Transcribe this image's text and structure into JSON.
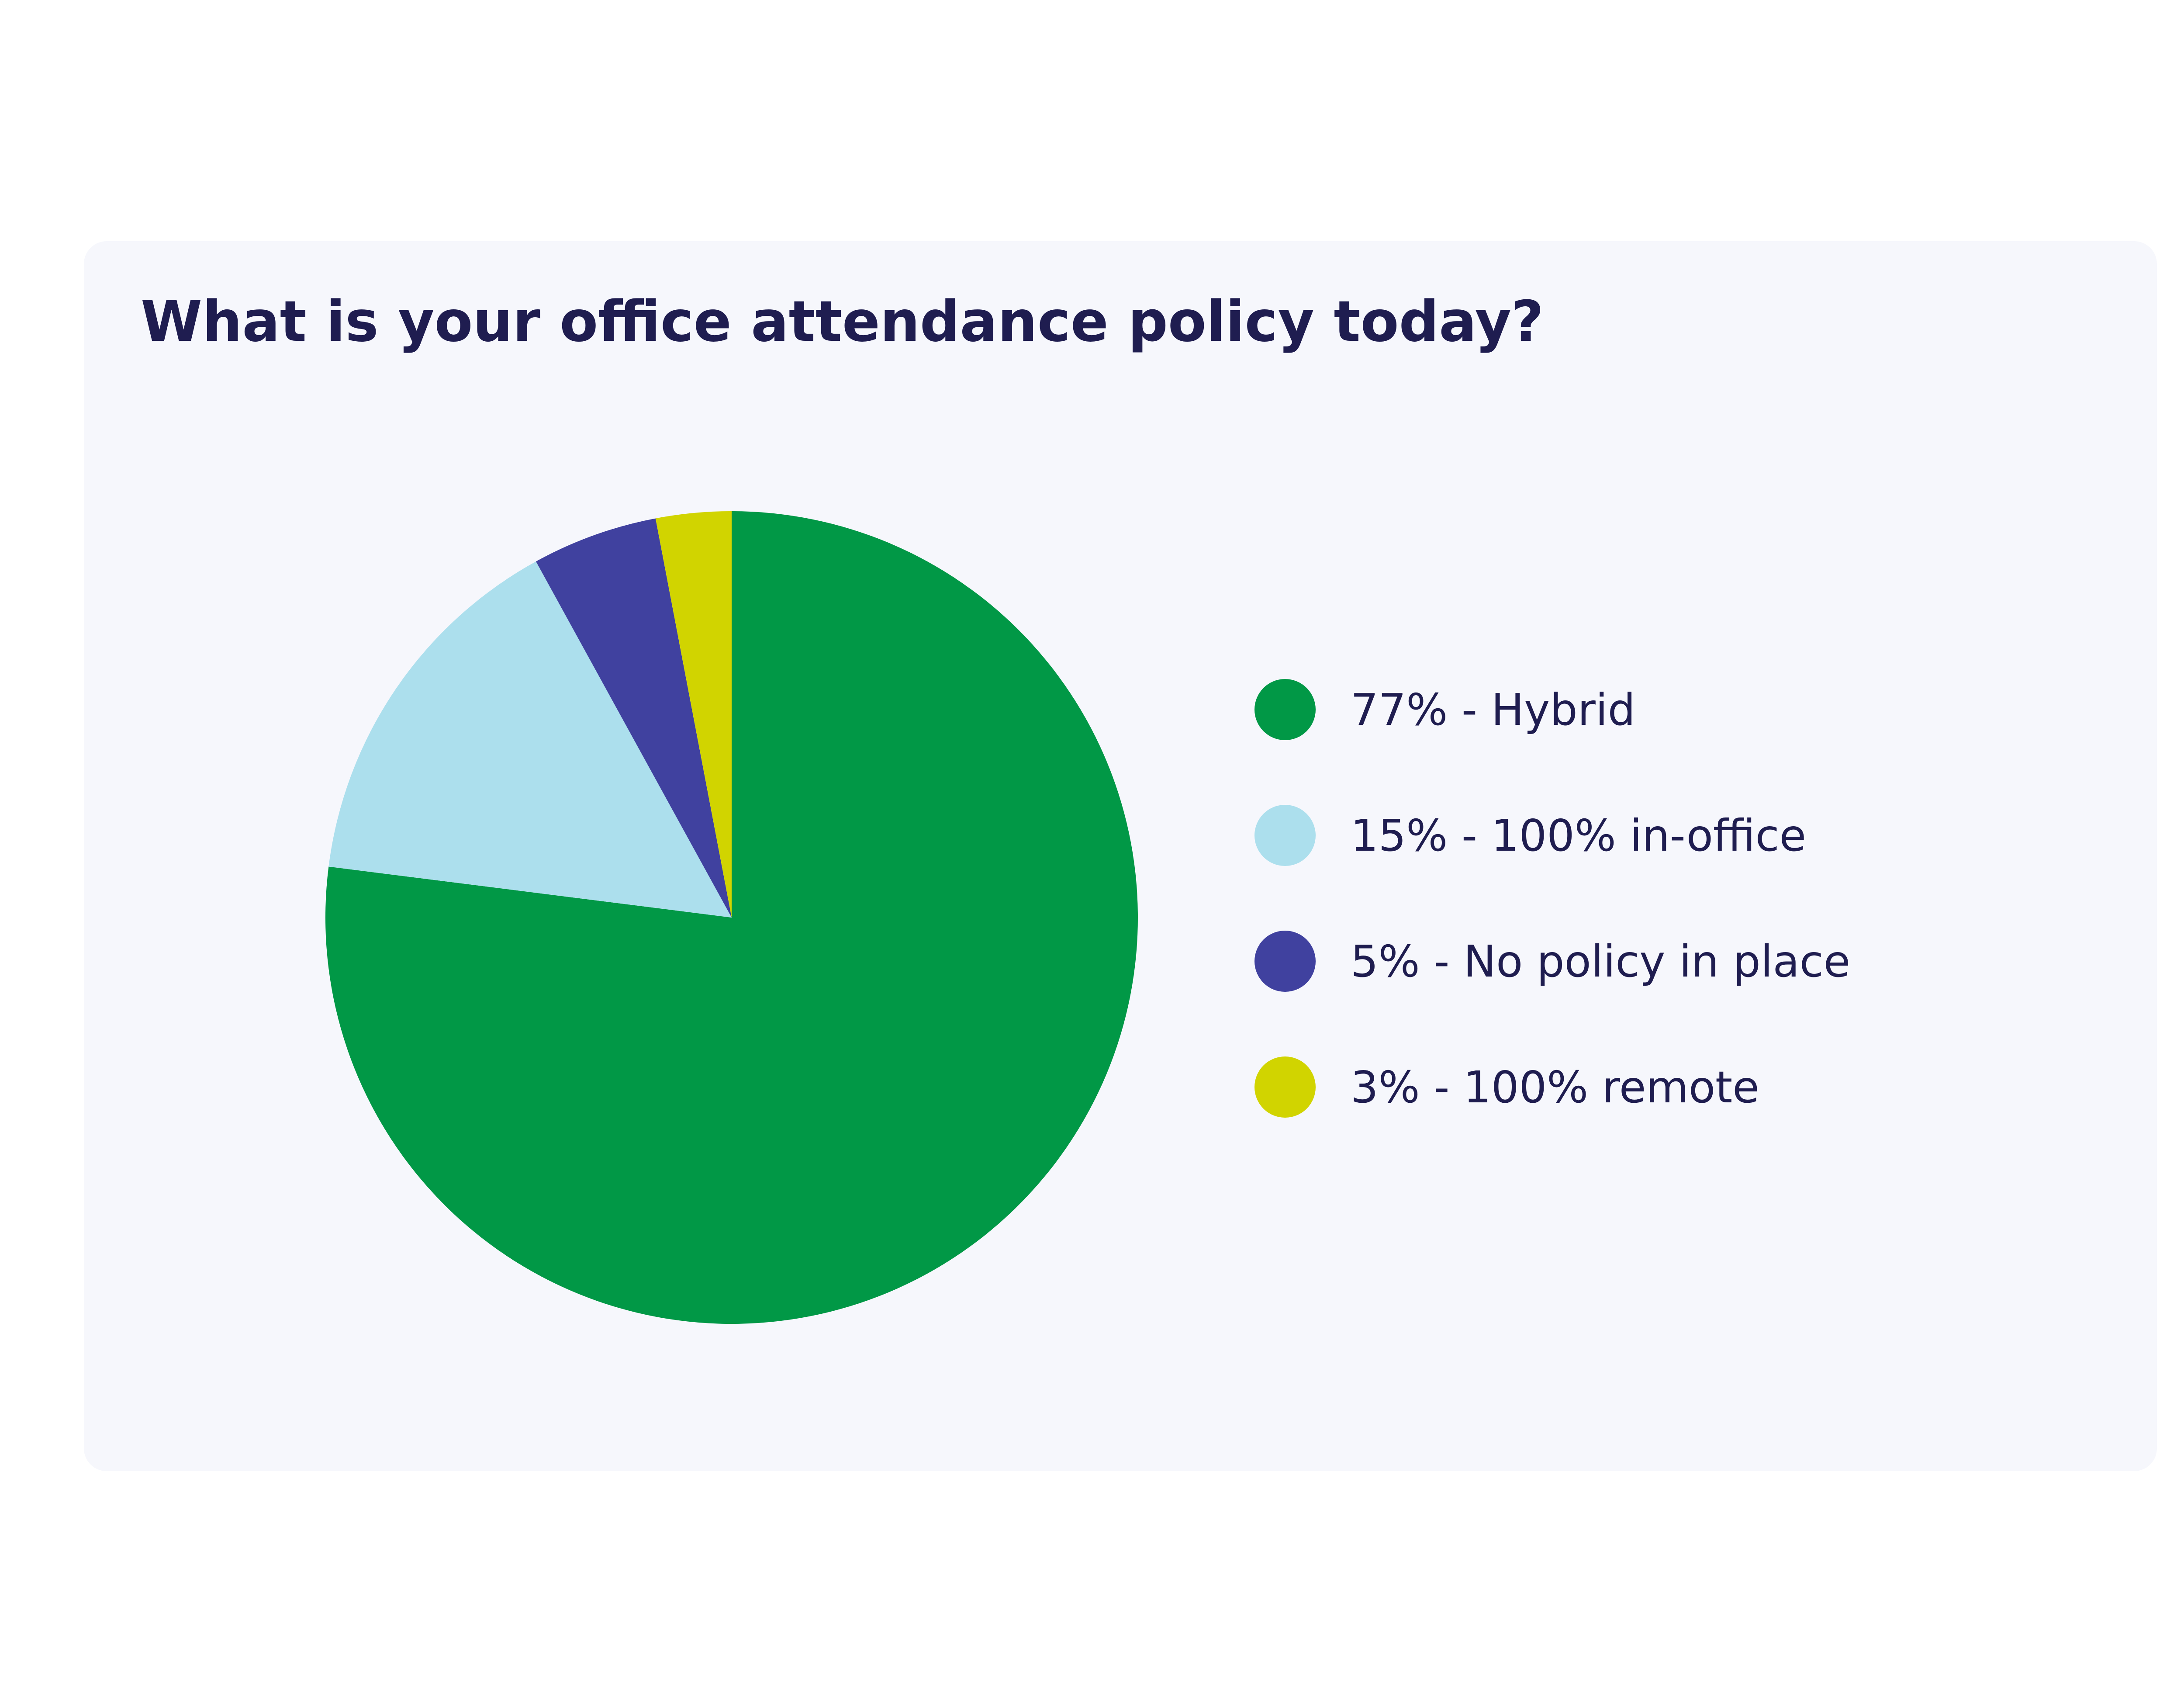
{
  "chart_data": {
    "type": "pie",
    "title": "What is your office attendance policy today?",
    "start_angle_deg": 0,
    "direction": "clockwise",
    "slices": [
      {
        "name": "Hybrid",
        "value": 77,
        "label": "77% - Hybrid",
        "color": "#019846"
      },
      {
        "name": "100% in-office",
        "value": 15,
        "label": "15% - 100% in-office",
        "color": "#acdfed"
      },
      {
        "name": "No policy in place",
        "value": 5,
        "label": "5% - No policy in place",
        "color": "#40419f"
      },
      {
        "name": "100% remote",
        "value": 3,
        "label": "3% - 100% remote",
        "color": "#d1d400"
      }
    ],
    "legend_position": "right"
  },
  "colors": {
    "card_background": "#f6f7fc",
    "text": "#1f1d50"
  }
}
